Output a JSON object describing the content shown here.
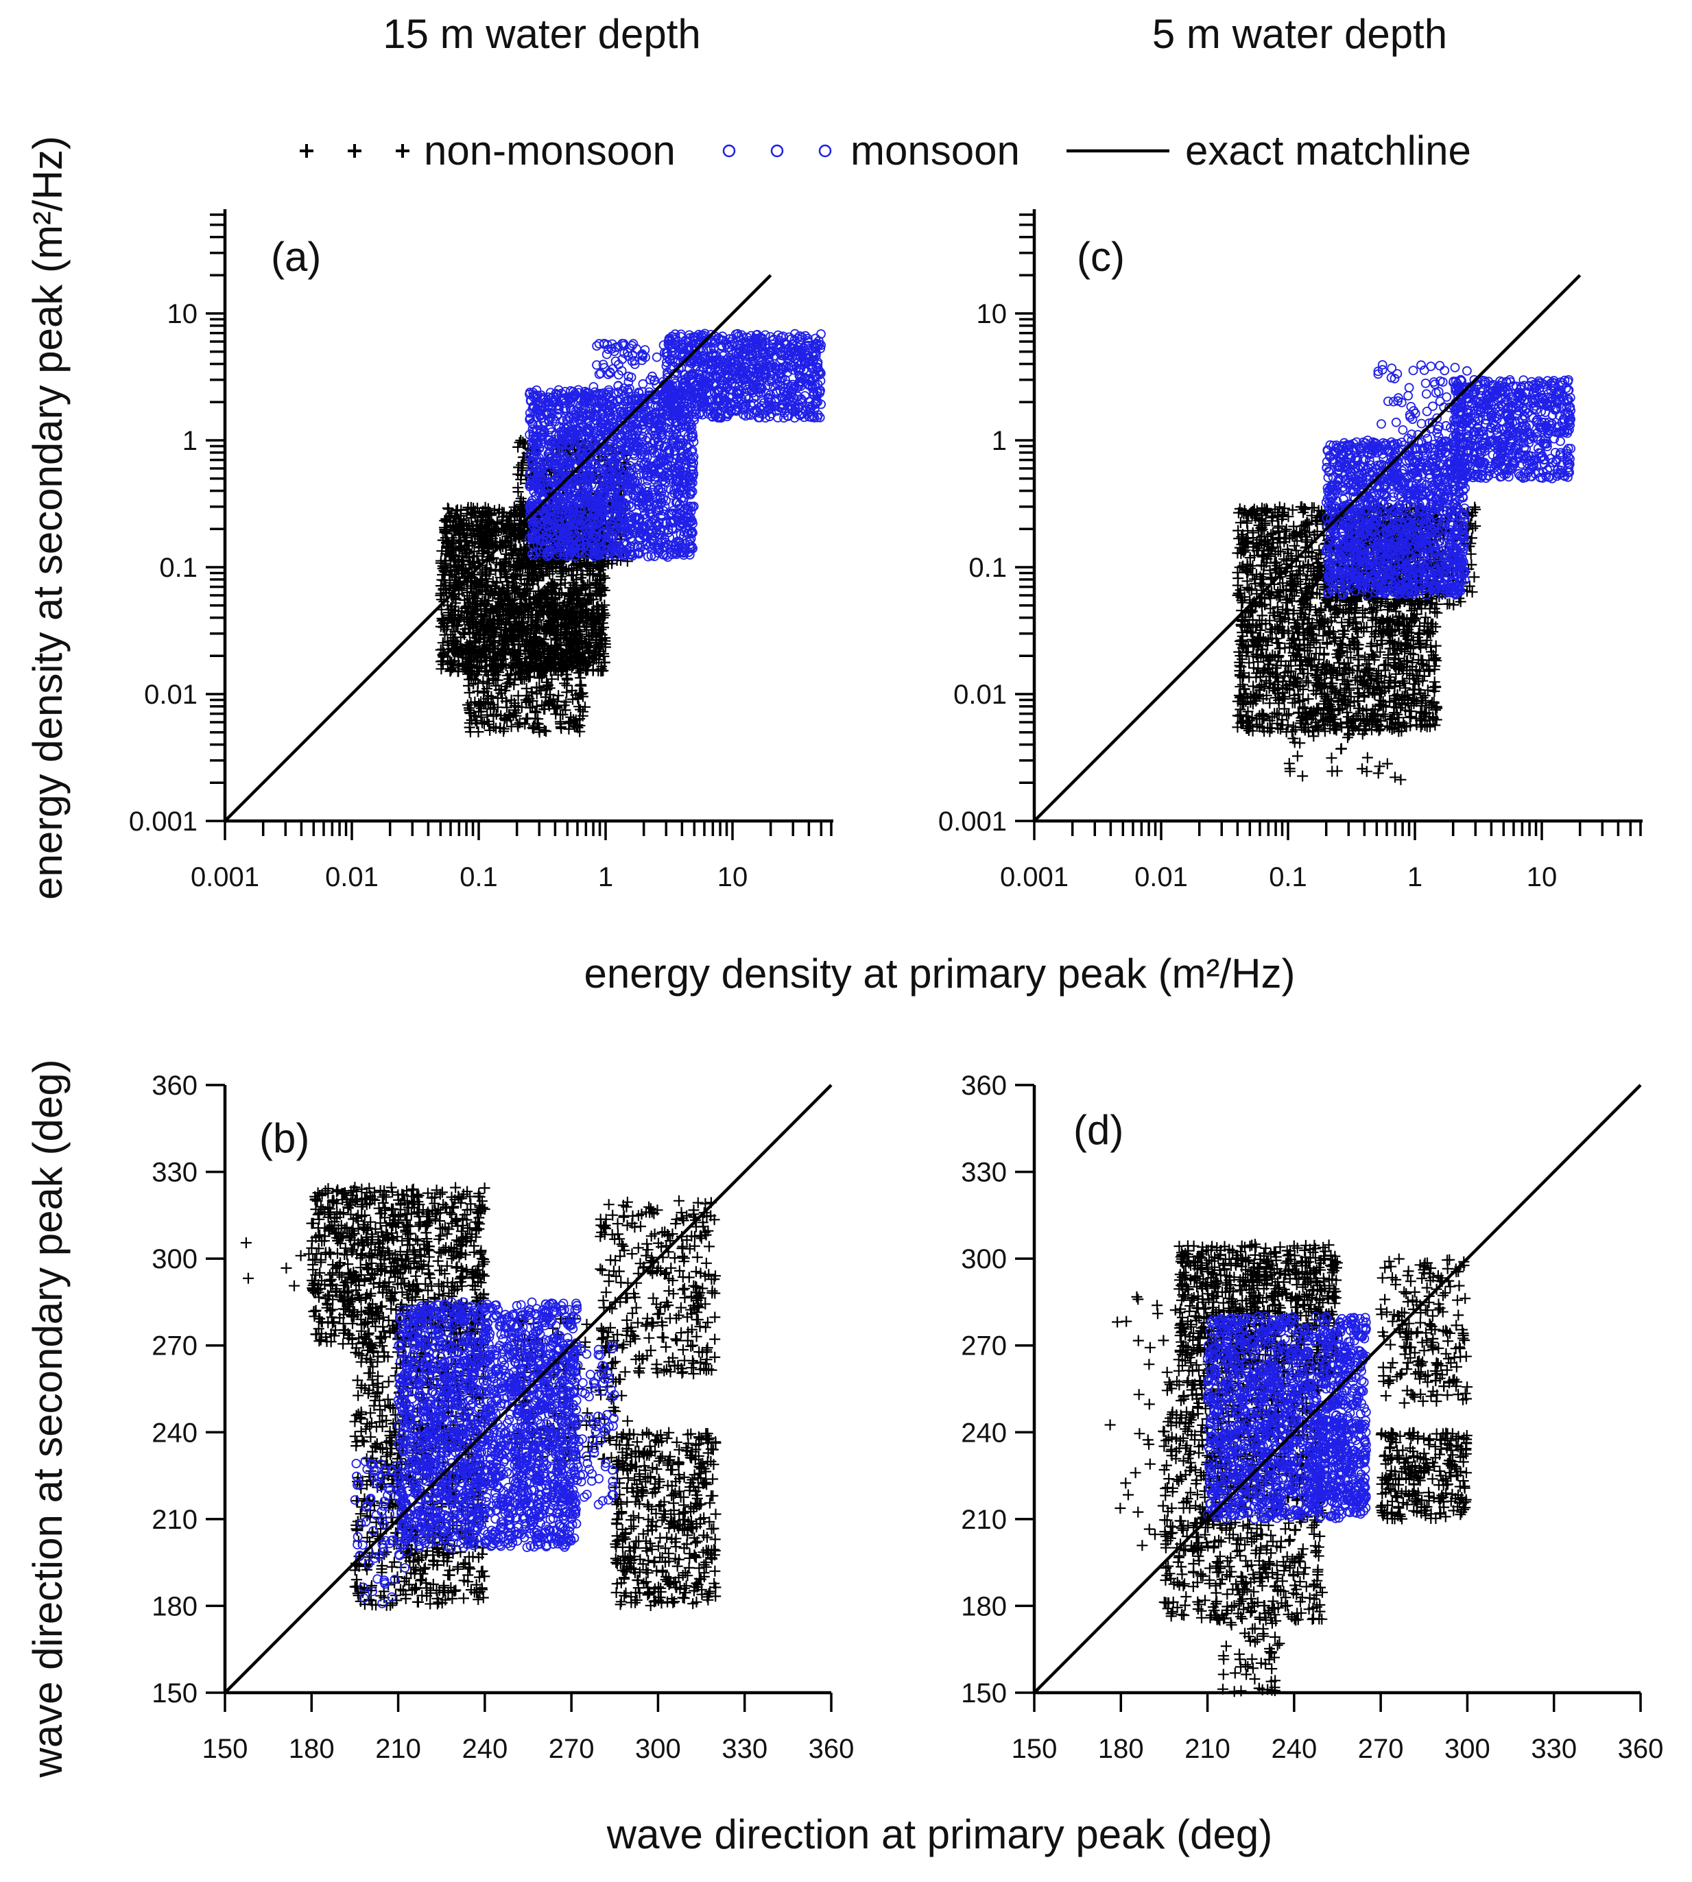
{
  "columns": [
    {
      "title": "15 m water depth"
    },
    {
      "title": "5 m water depth"
    }
  ],
  "legend": {
    "entries": [
      {
        "label": "non-monsoon",
        "marker": "plus-icon",
        "color": "#000000"
      },
      {
        "label": "monsoon",
        "marker": "circle-icon",
        "color": "#2020e8"
      },
      {
        "label": "exact matchline",
        "marker": "line",
        "color": "#000000"
      }
    ]
  },
  "shared_axes": {
    "energy_xlabel": "energy density at primary peak (m²/Hz)",
    "energy_ylabel": "energy density at secondary peak (m²/Hz)",
    "direction_xlabel": "wave direction at primary peak (deg)",
    "direction_ylabel": "wave direction at secondary peak (deg)"
  },
  "chart_data": [
    {
      "panel": "(a)",
      "type": "scatter",
      "depth": "15 m water depth",
      "xscale": "log",
      "yscale": "log",
      "xlim": [
        0.001,
        60
      ],
      "ylim": [
        0.001,
        60
      ],
      "xticks": [
        "0.001",
        "0.01",
        "0.1",
        "1",
        "10"
      ],
      "yticks": [
        "0.001",
        "0.01",
        "0.1",
        "1",
        "10"
      ],
      "xlabel": "energy density at primary peak (m²/Hz)",
      "ylabel": "energy density at secondary peak (m²/Hz)",
      "series": [
        {
          "name": "non-monsoon",
          "marker": "+",
          "color": "#000000",
          "clusters": [
            {
              "x": [
                0.05,
                1.0
              ],
              "y": [
                0.015,
                0.3
              ],
              "n": 1800
            },
            {
              "x": [
                0.08,
                0.7
              ],
              "y": [
                0.005,
                0.05
              ],
              "n": 500
            },
            {
              "x": [
                0.2,
                1.5
              ],
              "y": [
                0.1,
                1.0
              ],
              "n": 400
            }
          ]
        },
        {
          "name": "monsoon",
          "marker": "o",
          "color": "#2020e8",
          "clusters": [
            {
              "x": [
                0.25,
                5.0
              ],
              "y": [
                0.12,
                2.5
              ],
              "n": 1800
            },
            {
              "x": [
                3.0,
                50.0
              ],
              "y": [
                1.5,
                7.0
              ],
              "n": 900
            },
            {
              "x": [
                0.8,
                3.0
              ],
              "y": [
                1.5,
                6.0
              ],
              "n": 100
            }
          ]
        },
        {
          "name": "exact matchline",
          "type": "line",
          "x": [
            0.001,
            20
          ],
          "y": [
            0.001,
            20
          ]
        }
      ]
    },
    {
      "panel": "(c)",
      "type": "scatter",
      "depth": "5 m water depth",
      "xscale": "log",
      "yscale": "log",
      "xlim": [
        0.001,
        60
      ],
      "ylim": [
        0.001,
        60
      ],
      "xticks": [
        "0.001",
        "0.01",
        "0.1",
        "1",
        "10"
      ],
      "yticks": [
        "0.001",
        "0.01",
        "0.1",
        "1",
        "10"
      ],
      "xlabel": "energy density at primary peak (m²/Hz)",
      "ylabel": "energy density at secondary peak (m²/Hz)",
      "series": [
        {
          "name": "non-monsoon",
          "marker": "+",
          "color": "#000000",
          "clusters": [
            {
              "x": [
                0.04,
                1.5
              ],
              "y": [
                0.005,
                0.3
              ],
              "n": 1900
            },
            {
              "x": [
                0.1,
                0.8
              ],
              "y": [
                0.002,
                0.008
              ],
              "n": 40
            },
            {
              "x": [
                0.3,
                3.0
              ],
              "y": [
                0.05,
                0.3
              ],
              "n": 300
            }
          ]
        },
        {
          "name": "monsoon",
          "marker": "o",
          "color": "#2020e8",
          "clusters": [
            {
              "x": [
                0.2,
                2.5
              ],
              "y": [
                0.06,
                1.0
              ],
              "n": 1400
            },
            {
              "x": [
                2.0,
                17.0
              ],
              "y": [
                0.5,
                3.0
              ],
              "n": 700
            },
            {
              "x": [
                0.5,
                3.0
              ],
              "y": [
                1.0,
                4.0
              ],
              "n": 80
            }
          ]
        },
        {
          "name": "exact matchline",
          "type": "line",
          "x": [
            0.001,
            20
          ],
          "y": [
            0.001,
            20
          ]
        }
      ]
    },
    {
      "panel": "(b)",
      "type": "scatter",
      "depth": "15 m water depth",
      "xlim": [
        150,
        360
      ],
      "ylim": [
        150,
        360
      ],
      "xticks": [
        "150",
        "180",
        "210",
        "240",
        "270",
        "300",
        "330",
        "360"
      ],
      "yticks": [
        "150",
        "180",
        "210",
        "240",
        "270",
        "300",
        "330",
        "360"
      ],
      "xlabel": "wave direction at primary peak (deg)",
      "ylabel": "wave direction at secondary peak (deg)",
      "series": [
        {
          "name": "non-monsoon",
          "marker": "+",
          "color": "#000000",
          "clusters": [
            {
              "x": [
                180,
                240
              ],
              "y": [
                270,
                325
              ],
              "n": 900
            },
            {
              "x": [
                195,
                240
              ],
              "y": [
                180,
                270
              ],
              "n": 700
            },
            {
              "x": [
                280,
                320
              ],
              "y": [
                260,
                320
              ],
              "n": 300
            },
            {
              "x": [
                285,
                320
              ],
              "y": [
                180,
                240
              ],
              "n": 450
            },
            {
              "x": [
                250,
                290
              ],
              "y": [
                230,
                280
              ],
              "n": 150
            },
            {
              "x": [
                150,
                180
              ],
              "y": [
                265,
                310
              ],
              "n": 6
            }
          ]
        },
        {
          "name": "monsoon",
          "marker": "o",
          "color": "#2020e8",
          "clusters": [
            {
              "x": [
                210,
                272
              ],
              "y": [
                200,
                285
              ],
              "n": 2000
            },
            {
              "x": [
                195,
                215
              ],
              "y": [
                180,
                230
              ],
              "n": 80
            },
            {
              "x": [
                250,
                285
              ],
              "y": [
                215,
                270
              ],
              "n": 200
            }
          ]
        },
        {
          "name": "exact matchline",
          "type": "line",
          "x": [
            150,
            360
          ],
          "y": [
            150,
            360
          ]
        }
      ]
    },
    {
      "panel": "(d)",
      "type": "scatter",
      "depth": "5 m water depth",
      "xlim": [
        150,
        360
      ],
      "ylim": [
        150,
        360
      ],
      "xticks": [
        "150",
        "180",
        "210",
        "240",
        "270",
        "300",
        "330",
        "360"
      ],
      "yticks": [
        "150",
        "180",
        "210",
        "240",
        "270",
        "300",
        "330",
        "360"
      ],
      "xlabel": "wave direction at primary peak (deg)",
      "ylabel": "wave direction at secondary peak (deg)",
      "series": [
        {
          "name": "non-monsoon",
          "marker": "+",
          "color": "#000000",
          "clusters": [
            {
              "x": [
                200,
                255
              ],
              "y": [
                260,
                305
              ],
              "n": 800
            },
            {
              "x": [
                195,
                250
              ],
              "y": [
                175,
                260
              ],
              "n": 800
            },
            {
              "x": [
                270,
                300
              ],
              "y": [
                250,
                300
              ],
              "n": 200
            },
            {
              "x": [
                270,
                300
              ],
              "y": [
                210,
                240
              ],
              "n": 250
            },
            {
              "x": [
                215,
                235
              ],
              "y": [
                150,
                180
              ],
              "n": 60
            },
            {
              "x": [
                175,
                200
              ],
              "y": [
                200,
                290
              ],
              "n": 30
            }
          ]
        },
        {
          "name": "monsoon",
          "marker": "o",
          "color": "#2020e8",
          "clusters": [
            {
              "x": [
                210,
                265
              ],
              "y": [
                210,
                280
              ],
              "n": 1500
            },
            {
              "x": [
                245,
                265
              ],
              "y": [
                215,
                245
              ],
              "n": 150
            }
          ]
        },
        {
          "name": "exact matchline",
          "type": "line",
          "x": [
            150,
            360
          ],
          "y": [
            150,
            360
          ]
        }
      ]
    }
  ]
}
